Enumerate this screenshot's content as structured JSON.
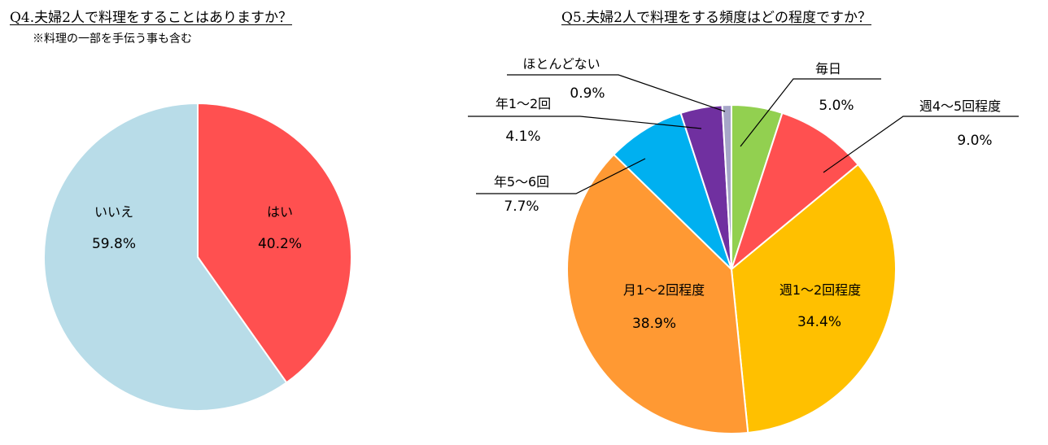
{
  "q4": {
    "title": "Q4.夫婦2人で料理をすることはありますか？",
    "note": "※料理の一部を手伝う事も含む"
  },
  "q5": {
    "title": "Q5.夫婦2人で料理をする頻度はどの程度ですか？"
  },
  "chart_data": [
    {
      "type": "pie",
      "title": "Q4.夫婦2人で料理をすることはありますか？",
      "subtitle": "※料理の一部を手伝う事も含む",
      "slices": [
        {
          "label": "はい",
          "value": 40.2,
          "display": "40.2%",
          "color": "#ff5050"
        },
        {
          "label": "いいえ",
          "value": 59.8,
          "display": "59.8%",
          "color": "#b8dce8"
        }
      ]
    },
    {
      "type": "pie",
      "title": "Q5.夫婦2人で料理をする頻度はどの程度ですか？",
      "slices": [
        {
          "label": "毎日",
          "value": 5.0,
          "display": "5.0%",
          "color": "#92d050"
        },
        {
          "label": "週4～5回程度",
          "value": 9.0,
          "display": "9.0%",
          "color": "#ff5050"
        },
        {
          "label": "週1～2回程度",
          "value": 34.4,
          "display": "34.4%",
          "color": "#ffc000"
        },
        {
          "label": "月1～2回程度",
          "value": 38.9,
          "display": "38.9%",
          "color": "#ff9933"
        },
        {
          "label": "年5～6回",
          "value": 7.7,
          "display": "7.7%",
          "color": "#00b0f0"
        },
        {
          "label": "年1～2回",
          "value": 4.1,
          "display": "4.1%",
          "color": "#7030a0"
        },
        {
          "label": "ほとんどない",
          "value": 0.9,
          "display": "0.9%",
          "color": "#a6a6c8"
        }
      ]
    }
  ]
}
